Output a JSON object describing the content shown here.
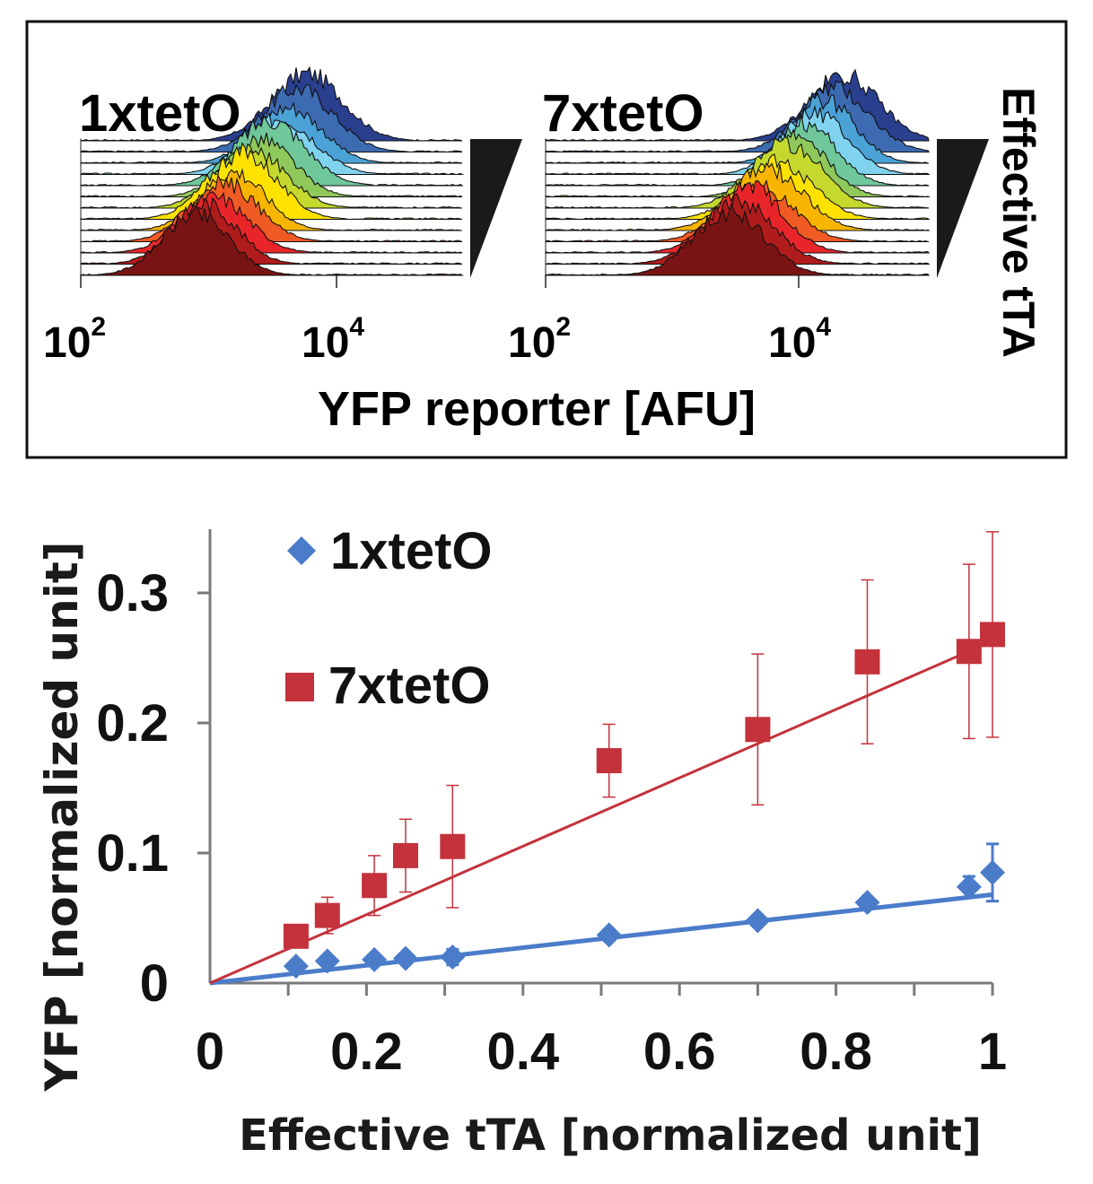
{
  "top_panel": {
    "left_title": "1xtetO",
    "right_title": "7xtetO",
    "tick_100": "10",
    "tick_100_exp": "2",
    "tick_10000": "10",
    "tick_10000_exp": "4",
    "xlabel": "YFP reporter [AFU]",
    "side_label": "Effective tTA",
    "colors": [
      "#7a1414",
      "#b01b1b",
      "#e8262a",
      "#f05a23",
      "#f7b500",
      "#fde200",
      "#c4d82d",
      "#8fc85b",
      "#6fc79a",
      "#7fd3ee",
      "#4aa2d6",
      "#3d6bb2",
      "#2a3f8e"
    ]
  },
  "chart_data": {
    "type": "scatter",
    "title": "",
    "xlabel": "Effective tTA [normalized unit]",
    "ylabel": "YFP [normalized unit]",
    "xlim": [
      0,
      1
    ],
    "ylim": [
      0,
      0.35
    ],
    "x_ticks": [
      "0",
      "0.2",
      "0.4",
      "0.6",
      "0.8",
      "1"
    ],
    "y_ticks": [
      "0",
      "0.1",
      "0.2",
      "0.3"
    ],
    "legend_position": "top-left",
    "series": [
      {
        "name": "1xtetO",
        "marker": "diamond",
        "color": "#4a7cc9",
        "x": [
          0.11,
          0.15,
          0.21,
          0.25,
          0.31,
          0.51,
          0.7,
          0.84,
          0.97,
          1.0
        ],
        "y": [
          0.013,
          0.017,
          0.018,
          0.019,
          0.02,
          0.037,
          0.048,
          0.062,
          0.074,
          0.085
        ],
        "err": [
          0.003,
          0.003,
          0.003,
          0.003,
          0.006,
          0.004,
          0.003,
          0.003,
          0.008,
          0.022
        ],
        "fit_line": [
          [
            0,
            0.0
          ],
          [
            1.0,
            0.068
          ]
        ]
      },
      {
        "name": "7xtetO",
        "marker": "square",
        "color": "#c4323b",
        "x": [
          0.11,
          0.15,
          0.21,
          0.25,
          0.31,
          0.51,
          0.7,
          0.84,
          0.97,
          1.0
        ],
        "y": [
          0.036,
          0.052,
          0.075,
          0.098,
          0.105,
          0.171,
          0.195,
          0.247,
          0.255,
          0.268
        ],
        "err": [
          0.006,
          0.014,
          0.023,
          0.028,
          0.047,
          0.028,
          0.058,
          0.063,
          0.067,
          0.079
        ],
        "fit_line": [
          [
            0,
            0.0
          ],
          [
            1.0,
            0.263
          ]
        ]
      }
    ]
  }
}
